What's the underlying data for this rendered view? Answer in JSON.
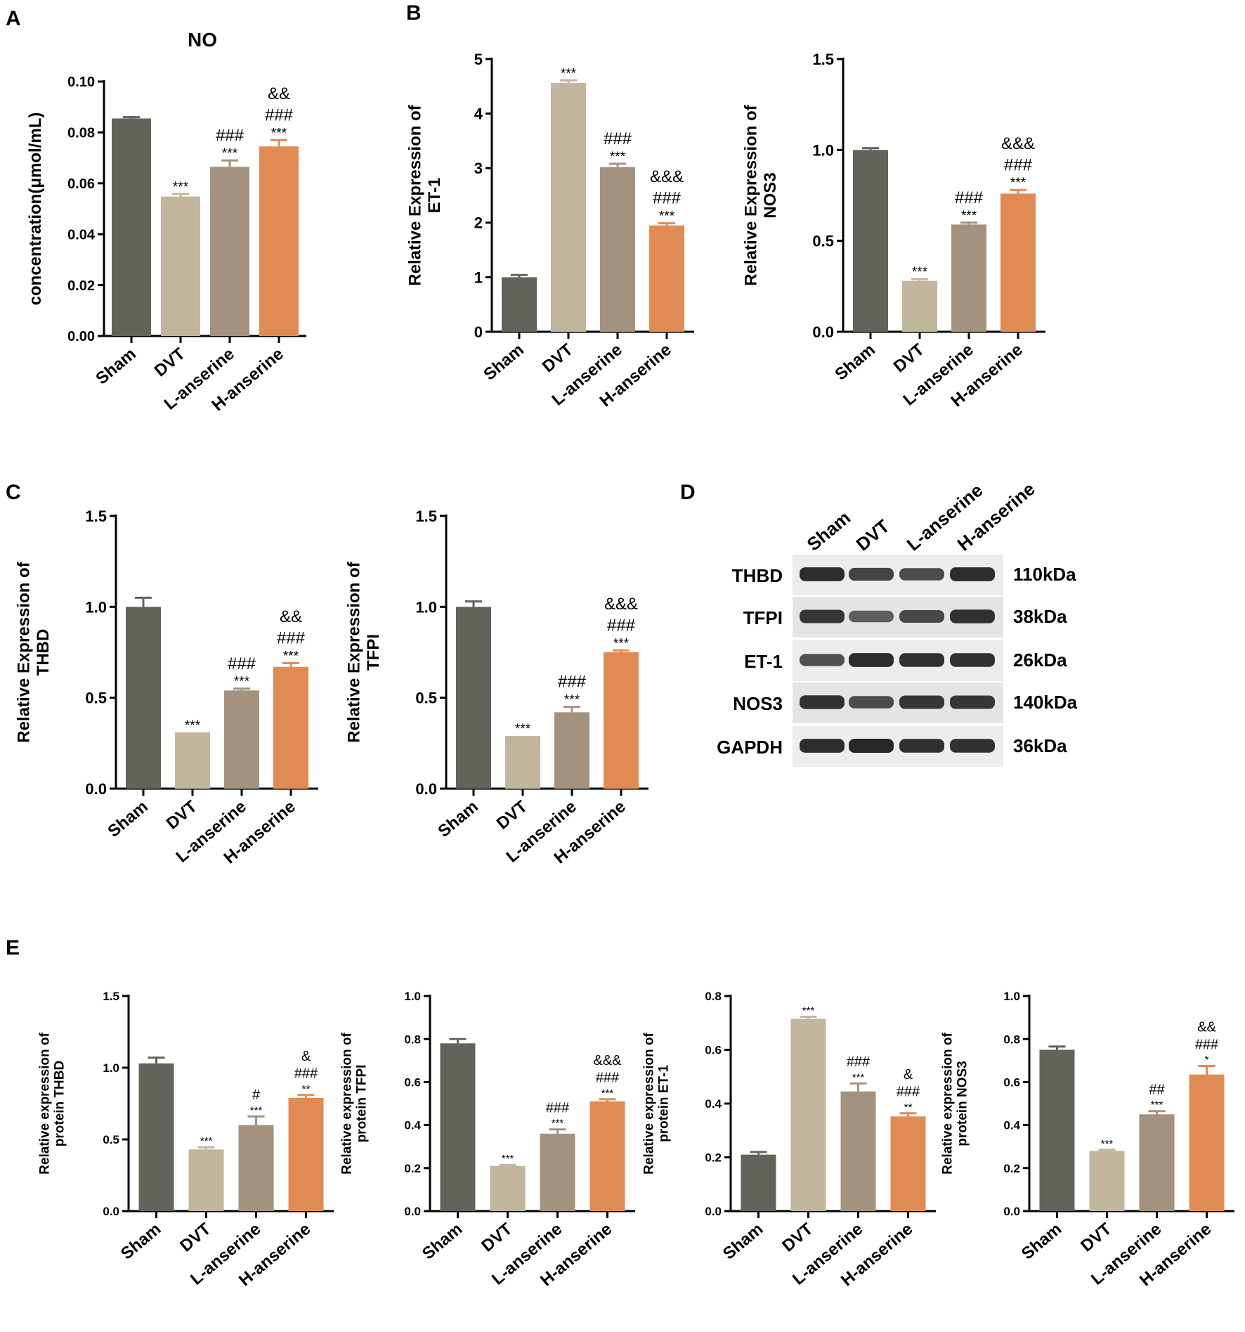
{
  "panel_labels": [
    "A",
    "B",
    "C",
    "D",
    "E"
  ],
  "groups": [
    "Sham",
    "DVT",
    "L-anserine",
    "H-anserine"
  ],
  "bar_colors": [
    "#63635b",
    "#c1b59c",
    "#a4927e",
    "#e18b54"
  ],
  "chart_data": [
    {
      "id": "A-NO",
      "type": "bar",
      "title": "NO",
      "ylabel": [
        "concentration(μmol/mL)"
      ],
      "categories": [
        "Sham",
        "DVT",
        "L-anserine",
        "H-anserine"
      ],
      "values": [
        0.0855,
        0.0548,
        0.0665,
        0.0745
      ],
      "errors": [
        0.0005,
        0.001,
        0.0025,
        0.0025
      ],
      "ylim": [
        0,
        0.1
      ],
      "ticks": [
        0,
        0.02,
        0.04,
        0.06,
        0.08,
        0.1
      ],
      "tick_labels": [
        "0.00",
        "0.02",
        "0.04",
        "0.06",
        "0.08",
        "0.10"
      ],
      "annotations": [
        [],
        [
          "***"
        ],
        [
          "***",
          "###"
        ],
        [
          "***",
          "###",
          "&&"
        ]
      ]
    },
    {
      "id": "B-ET1",
      "type": "bar",
      "title": "",
      "ylabel": [
        "Relative Expression of",
        "ET-1"
      ],
      "categories": [
        "Sham",
        "DVT",
        "L-anserine",
        "H-anserine"
      ],
      "values": [
        1.0,
        4.56,
        3.02,
        1.95
      ],
      "errors": [
        0.04,
        0.05,
        0.06,
        0.04
      ],
      "ylim": [
        0,
        5
      ],
      "ticks": [
        0,
        1,
        2,
        3,
        4,
        5
      ],
      "tick_labels": [
        "0",
        "1",
        "2",
        "3",
        "4",
        "5"
      ],
      "annotations": [
        [],
        [
          "***"
        ],
        [
          "***",
          "###"
        ],
        [
          "***",
          "###",
          "&&&"
        ]
      ]
    },
    {
      "id": "B-NOS3",
      "type": "bar",
      "title": "",
      "ylabel": [
        "Relative Expression of",
        "NOS3"
      ],
      "categories": [
        "Sham",
        "DVT",
        "L-anserine",
        "H-anserine"
      ],
      "values": [
        1.0,
        0.28,
        0.59,
        0.76
      ],
      "errors": [
        0.01,
        0.01,
        0.01,
        0.02
      ],
      "ylim": [
        0,
        1.5
      ],
      "ticks": [
        0,
        0.5,
        1.0,
        1.5
      ],
      "tick_labels": [
        "0.0",
        "0.5",
        "1.0",
        "1.5"
      ],
      "annotations": [
        [],
        [
          "***"
        ],
        [
          "***",
          "###"
        ],
        [
          "***",
          "###",
          "&&&"
        ]
      ]
    },
    {
      "id": "C-THBD",
      "type": "bar",
      "title": "",
      "ylabel": [
        "Relative Expression of",
        "THBD"
      ],
      "categories": [
        "Sham",
        "DVT",
        "L-anserine",
        "H-anserine"
      ],
      "values": [
        1.0,
        0.31,
        0.54,
        0.67
      ],
      "errors": [
        0.05,
        0.0,
        0.01,
        0.02
      ],
      "ylim": [
        0,
        1.5
      ],
      "ticks": [
        0,
        0.5,
        1.0,
        1.5
      ],
      "tick_labels": [
        "0.0",
        "0.5",
        "1.0",
        "1.5"
      ],
      "annotations": [
        [],
        [
          "***"
        ],
        [
          "***",
          "###"
        ],
        [
          "***",
          "###",
          "&&"
        ]
      ]
    },
    {
      "id": "C-TFPI",
      "type": "bar",
      "title": "",
      "ylabel": [
        "Relative Expression of",
        "TFPI"
      ],
      "categories": [
        "Sham",
        "DVT",
        "L-anserine",
        "H-anserine"
      ],
      "values": [
        1.0,
        0.29,
        0.42,
        0.75
      ],
      "errors": [
        0.03,
        0.0,
        0.03,
        0.01
      ],
      "ylim": [
        0,
        1.5
      ],
      "ticks": [
        0,
        0.5,
        1.0,
        1.5
      ],
      "tick_labels": [
        "0.0",
        "0.5",
        "1.0",
        "1.5"
      ],
      "annotations": [
        [],
        [
          "***"
        ],
        [
          "***",
          "###"
        ],
        [
          "***",
          "###",
          "&&&"
        ]
      ]
    },
    {
      "id": "E-THBD",
      "type": "bar",
      "title": "",
      "ylabel": [
        "Relative expression of",
        "protein THBD"
      ],
      "categories": [
        "Sham",
        "DVT",
        "L-anserine",
        "H-anserine"
      ],
      "values": [
        1.03,
        0.43,
        0.6,
        0.79
      ],
      "errors": [
        0.04,
        0.015,
        0.06,
        0.02
      ],
      "ylim": [
        0,
        1.5
      ],
      "ticks": [
        0,
        0.5,
        1.0,
        1.5
      ],
      "tick_labels": [
        "0.0",
        "0.5",
        "1.0",
        "1.5"
      ],
      "annotations": [
        [],
        [
          "***"
        ],
        [
          "***",
          "#"
        ],
        [
          "**",
          "###",
          "&"
        ]
      ]
    },
    {
      "id": "E-TFPI",
      "type": "bar",
      "title": "",
      "ylabel": [
        "Relative expression of",
        "protein TFPI"
      ],
      "categories": [
        "Sham",
        "DVT",
        "L-anserine",
        "H-anserine"
      ],
      "values": [
        0.78,
        0.21,
        0.36,
        0.51
      ],
      "errors": [
        0.02,
        0.005,
        0.02,
        0.01
      ],
      "ylim": [
        0,
        1.0
      ],
      "ticks": [
        0,
        0.2,
        0.4,
        0.6,
        0.8,
        1.0
      ],
      "tick_labels": [
        "0.0",
        "0.2",
        "0.4",
        "0.6",
        "0.8",
        "1.0"
      ],
      "annotations": [
        [],
        [
          "***"
        ],
        [
          "***",
          "###"
        ],
        [
          "***",
          "###",
          "&&&"
        ]
      ]
    },
    {
      "id": "E-ET1",
      "type": "bar",
      "title": "",
      "ylabel": [
        "Relative expression of",
        "protein ET-1"
      ],
      "categories": [
        "Sham",
        "DVT",
        "L-anserine",
        "H-anserine"
      ],
      "values": [
        0.21,
        0.715,
        0.445,
        0.352
      ],
      "errors": [
        0.01,
        0.008,
        0.03,
        0.012
      ],
      "ylim": [
        0,
        0.8
      ],
      "ticks": [
        0,
        0.2,
        0.4,
        0.6,
        0.8
      ],
      "tick_labels": [
        "0.0",
        "0.2",
        "0.4",
        "0.6",
        "0.8"
      ],
      "annotations": [
        [],
        [
          "***"
        ],
        [
          "***",
          "###"
        ],
        [
          "**",
          "###",
          "&"
        ]
      ]
    },
    {
      "id": "E-NOS3",
      "type": "bar",
      "title": "",
      "ylabel": [
        "Relative expression of",
        "protein NOS3"
      ],
      "categories": [
        "Sham",
        "DVT",
        "L-anserine",
        "H-anserine"
      ],
      "values": [
        0.75,
        0.28,
        0.45,
        0.635
      ],
      "errors": [
        0.015,
        0.005,
        0.015,
        0.04
      ],
      "ylim": [
        0,
        1.0
      ],
      "ticks": [
        0,
        0.2,
        0.4,
        0.6,
        0.8,
        1.0
      ],
      "tick_labels": [
        "0.0",
        "0.2",
        "0.4",
        "0.6",
        "0.8",
        "1.0"
      ],
      "annotations": [
        [],
        [
          "***"
        ],
        [
          "***",
          "##"
        ],
        [
          "*",
          "###",
          "&&"
        ]
      ]
    }
  ],
  "western_blot": {
    "lanes": [
      "Sham",
      "DVT",
      "L-anserine",
      "H-anserine"
    ],
    "rows": [
      {
        "protein": "THBD",
        "kda": "110kDa",
        "intensity": [
          0.95,
          0.7,
          0.6,
          0.95
        ]
      },
      {
        "protein": "TFPI",
        "kda": "38kDa",
        "intensity": [
          0.85,
          0.4,
          0.65,
          0.9
        ]
      },
      {
        "protein": "ET-1",
        "kda": "26kDa",
        "intensity": [
          0.55,
          0.95,
          0.9,
          0.9
        ]
      },
      {
        "protein": "NOS3",
        "kda": "140kDa",
        "intensity": [
          0.9,
          0.6,
          0.85,
          0.85
        ]
      },
      {
        "protein": "GAPDH",
        "kda": "36kDa",
        "intensity": [
          0.95,
          1.0,
          0.9,
          0.9
        ]
      }
    ]
  }
}
